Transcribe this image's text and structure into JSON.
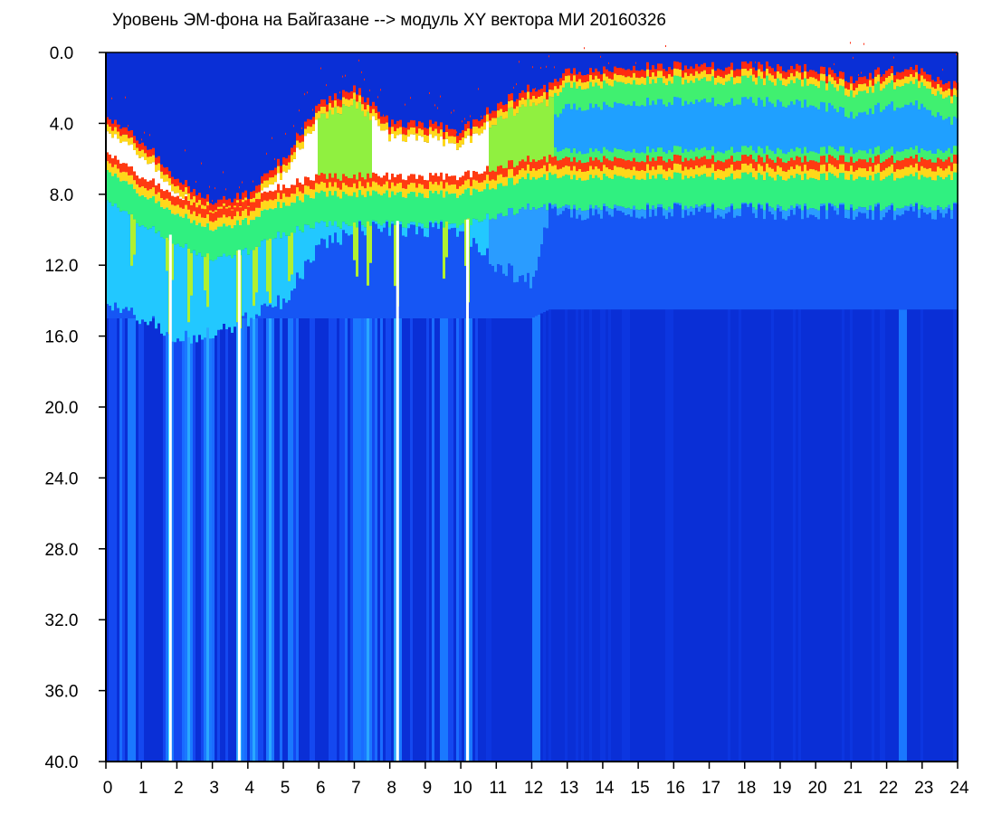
{
  "chart_data": {
    "type": "heatmap",
    "title": "Уровень ЭМ-фона на Байгазане  -->  модуль XY вектора МИ  20160326",
    "xlabel": "",
    "ylabel": "",
    "x_ticks": [
      "0",
      "1",
      "2",
      "3",
      "4",
      "5",
      "6",
      "7",
      "8",
      "9",
      "10",
      "11",
      "12",
      "13",
      "14",
      "15",
      "16",
      "17",
      "18",
      "19",
      "20",
      "21",
      "22",
      "23",
      "24"
    ],
    "y_ticks": [
      "0.0",
      "4.0",
      "8.0",
      "12.0",
      "16.0",
      "20.0",
      "24.0",
      "28.0",
      "32.0",
      "36.0",
      "40.0"
    ],
    "xlim": [
      0,
      24
    ],
    "ylim": [
      0,
      40
    ],
    "y_inverted": true,
    "grid": false,
    "colorscale": [
      "#ffffff",
      "#ff2a10",
      "#ffd010",
      "#a0ff20",
      "#20ff80",
      "#20e0ff",
      "#2080ff",
      "#0a3ae8",
      "#0a28c8"
    ],
    "band_edges": {
      "hours": [
        0,
        1,
        2,
        3,
        4,
        5,
        6,
        7,
        8,
        9,
        10,
        11,
        12,
        12.5,
        13,
        14,
        15,
        16,
        17,
        18,
        19,
        20,
        21,
        22,
        23,
        24
      ],
      "top": [
        3.5,
        5.0,
        7.0,
        8.5,
        8.0,
        6.0,
        3.0,
        2.0,
        4.0,
        4.0,
        4.5,
        3.0,
        2.0,
        2.0,
        1.0,
        1.0,
        0.8,
        0.8,
        0.8,
        0.8,
        0.8,
        0.9,
        1.5,
        1.0,
        1.0,
        2.0
      ],
      "yellow": [
        7.0,
        8.5,
        9.5,
        10.5,
        10.0,
        9.0,
        8.5,
        8.5,
        8.5,
        8.5,
        8.5,
        8.0,
        7.5,
        7.5,
        7.5,
        7.5,
        7.5,
        7.5,
        7.5,
        7.5,
        7.5,
        7.5,
        7.5,
        7.5,
        7.5,
        7.5
      ],
      "cyan": [
        14.0,
        15.0,
        16.0,
        16.0,
        15.0,
        14.0,
        11.0,
        10.0,
        10.0,
        10.0,
        10.0,
        12.0,
        13.0,
        9.0,
        9.0,
        9.0,
        9.0,
        9.0,
        9.0,
        9.0,
        9.0,
        9.0,
        9.0,
        9.0,
        9.0,
        9.0
      ],
      "noise": [
        15.0,
        15.0,
        15.0,
        15.0,
        15.0,
        15.0,
        15.0,
        15.0,
        15.0,
        15.0,
        15.0,
        15.0,
        15.0,
        14.5,
        14.5,
        14.5,
        14.5,
        14.5,
        14.5,
        14.5,
        14.5,
        14.5,
        14.5,
        14.5,
        14.5,
        14.5
      ]
    },
    "bursts": [
      {
        "hour": 0.75,
        "value": 0.6
      },
      {
        "hour": 1.8,
        "value": 0.9
      },
      {
        "hour": 2.35,
        "value": 0.8
      },
      {
        "hour": 2.85,
        "value": 0.6
      },
      {
        "hour": 3.75,
        "value": 1.0
      },
      {
        "hour": 4.2,
        "value": 0.7
      },
      {
        "hour": 4.6,
        "value": 0.8
      },
      {
        "hour": 5.2,
        "value": 0.6
      },
      {
        "hour": 7.05,
        "value": 0.6
      },
      {
        "hour": 7.4,
        "value": 0.7
      },
      {
        "hour": 8.2,
        "value": 1.0
      },
      {
        "hour": 9.55,
        "value": 0.6
      },
      {
        "hour": 10.2,
        "value": 0.9
      },
      {
        "hour": 12.1,
        "value": 0.4
      },
      {
        "hour": 22.45,
        "value": 0.5
      }
    ],
    "gaps": [
      1.78,
      3.72,
      8.18,
      10.15
    ]
  }
}
